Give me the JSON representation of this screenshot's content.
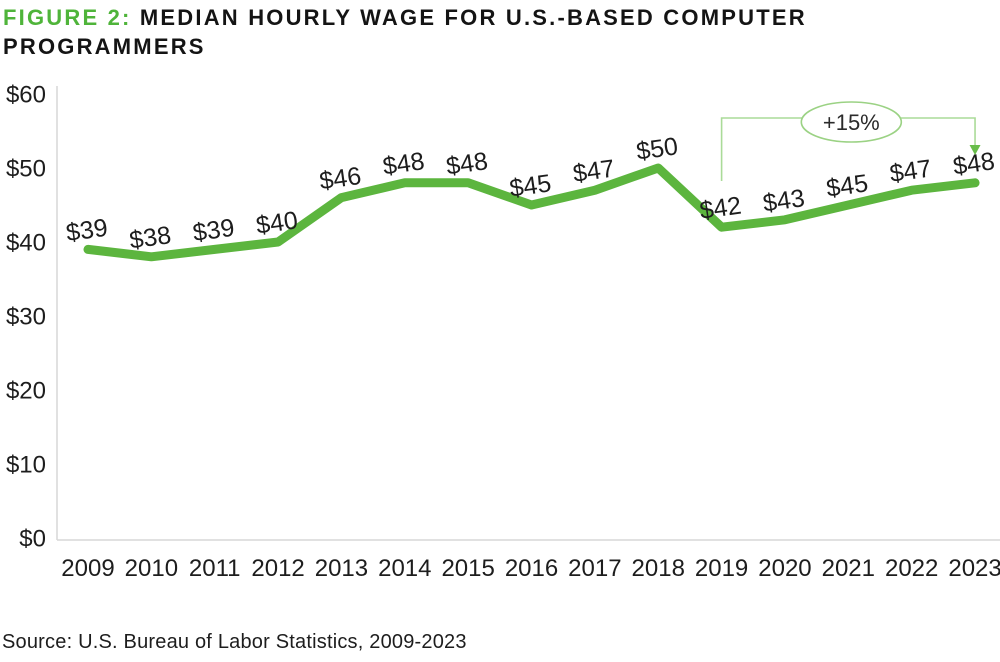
{
  "header": {
    "figure_label": "FIGURE 2:",
    "title": "MEDIAN HOURLY WAGE FOR U.S.-BASED COMPUTER PROGRAMMERS"
  },
  "source": "Source: U.S. Bureau of Labor Statistics, 2009-2023",
  "colors": {
    "figure_label": "#4fb43a",
    "line": "#5cb53e",
    "annotation": "#aadb98",
    "annotation_border": "#9bd284",
    "arrow": "#68bd4a",
    "axis": "#d7d7d7",
    "text": "#1d1d1d"
  },
  "chart_data": {
    "type": "line",
    "title": "MEDIAN HOURLY WAGE FOR U.S.-BASED COMPUTER PROGRAMMERS",
    "xlabel": "",
    "ylabel": "",
    "grid": false,
    "legend": false,
    "categories": [
      "2009",
      "2010",
      "2011",
      "2012",
      "2013",
      "2014",
      "2015",
      "2016",
      "2017",
      "2018",
      "2019",
      "2020",
      "2021",
      "2022",
      "2023"
    ],
    "values": [
      39,
      38,
      39,
      40,
      46,
      48,
      48,
      45,
      47,
      50,
      42,
      43,
      45,
      47,
      48
    ],
    "data_labels": [
      "$39",
      "$38",
      "$39",
      "$40",
      "$46",
      "$48",
      "$48",
      "$45",
      "$47",
      "$50",
      "$42",
      "$43",
      "$45",
      "$47",
      "$48"
    ],
    "y_ticks": [
      "$0",
      "$10",
      "$20",
      "$30",
      "$40",
      "$50",
      "$60"
    ],
    "y_tick_values": [
      0,
      10,
      20,
      30,
      40,
      50,
      60
    ],
    "ylim": [
      0,
      60
    ],
    "annotation": {
      "label": "+15%",
      "from_category": "2019",
      "to_category": "2023"
    }
  }
}
